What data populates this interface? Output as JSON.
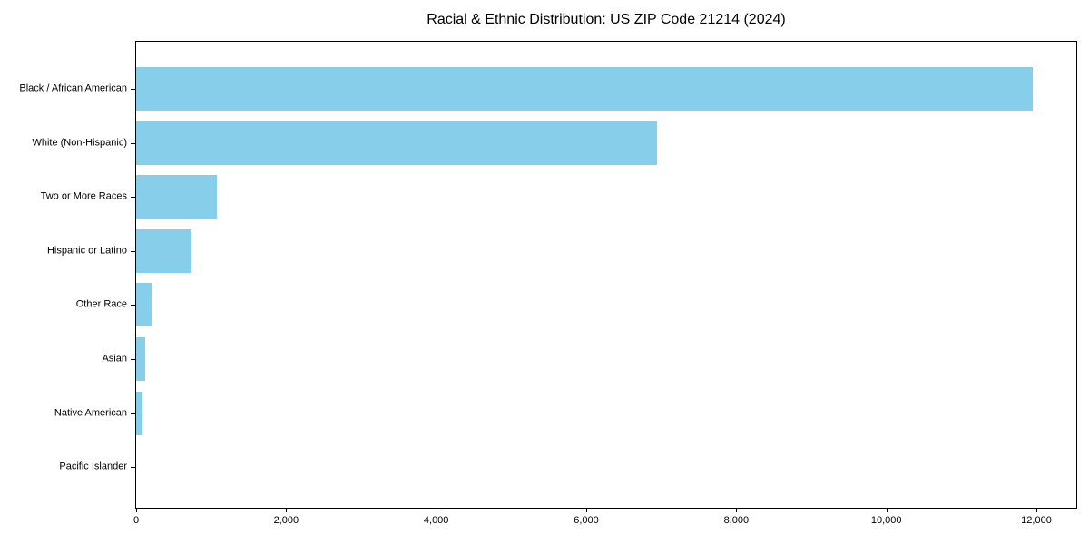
{
  "figure": {
    "background_color": "#ffffff",
    "text_color": "#000000"
  },
  "chart_data": {
    "type": "bar",
    "orientation": "horizontal",
    "title": "Racial & Ethnic Distribution: US ZIP Code 21214 (2024)",
    "xlabel": "",
    "ylabel": "",
    "categories": [
      "Black / African American",
      "White (Non-Hispanic)",
      "Two or More Races",
      "Hispanic or Latino",
      "Other Race",
      "Asian",
      "Native American",
      "Pacific Islander"
    ],
    "values": [
      11950,
      6940,
      1080,
      740,
      200,
      120,
      90,
      0
    ],
    "xlim": [
      0,
      12550
    ],
    "x_ticks": [
      {
        "value": 0,
        "label": "0"
      },
      {
        "value": 2000,
        "label": "2,000"
      },
      {
        "value": 4000,
        "label": "4,000"
      },
      {
        "value": 6000,
        "label": "6,000"
      },
      {
        "value": 8000,
        "label": "8,000"
      },
      {
        "value": 10000,
        "label": "10,000"
      },
      {
        "value": 12000,
        "label": "12,000"
      }
    ],
    "bar_color": "#87CEEB",
    "axis_color": "#000000",
    "grid": false,
    "legend": null
  }
}
